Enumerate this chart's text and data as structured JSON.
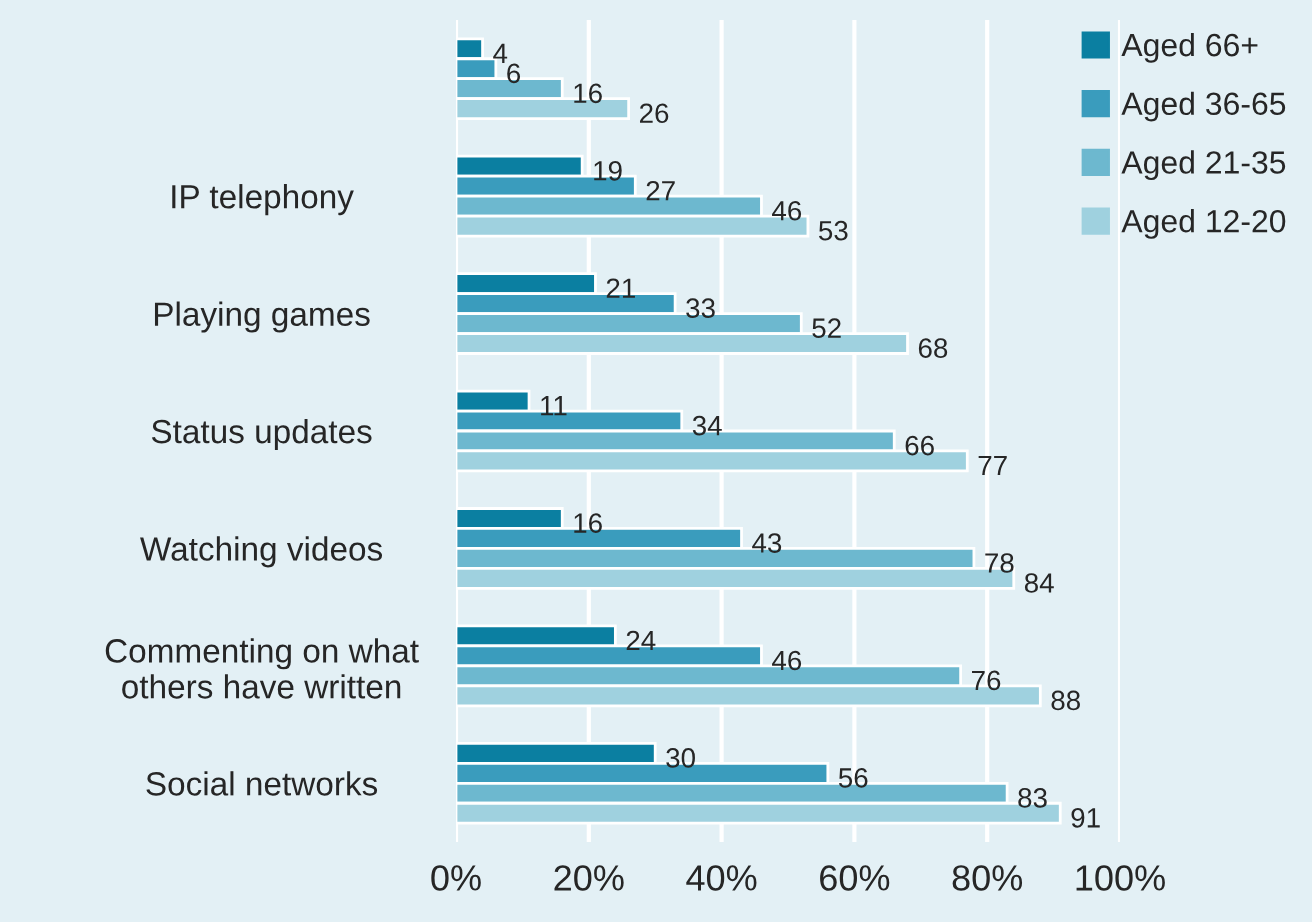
{
  "chart_data": {
    "type": "bar",
    "orientation": "horizontal",
    "categories": [
      null,
      "IP telephony",
      "Playing games",
      "Status updates",
      "Watching videos",
      "Commenting on what\nothers have written",
      "Social networks"
    ],
    "series": [
      {
        "name": "Aged 66+",
        "color": "#0b7fa1",
        "values": [
          4,
          19,
          21,
          11,
          16,
          24,
          30
        ]
      },
      {
        "name": "Aged 36-65",
        "color": "#3a9cbd",
        "values": [
          6,
          27,
          33,
          34,
          43,
          46,
          56
        ]
      },
      {
        "name": "Aged 21-35",
        "color": "#6db8cf",
        "values": [
          16,
          46,
          52,
          66,
          78,
          76,
          83
        ]
      },
      {
        "name": "Aged 12-20",
        "color": "#9fd1df",
        "values": [
          26,
          53,
          68,
          77,
          84,
          88,
          91
        ]
      }
    ],
    "xlim": [
      0,
      100
    ],
    "xticks": [
      {
        "value": 0,
        "label": "0%"
      },
      {
        "value": 20,
        "label": "20%"
      },
      {
        "value": 40,
        "label": "40%"
      },
      {
        "value": 60,
        "label": "60%"
      },
      {
        "value": 80,
        "label": "80%"
      },
      {
        "value": 100,
        "label": "100%"
      }
    ],
    "grid": "x",
    "legend": "top right",
    "data_labels": true
  }
}
